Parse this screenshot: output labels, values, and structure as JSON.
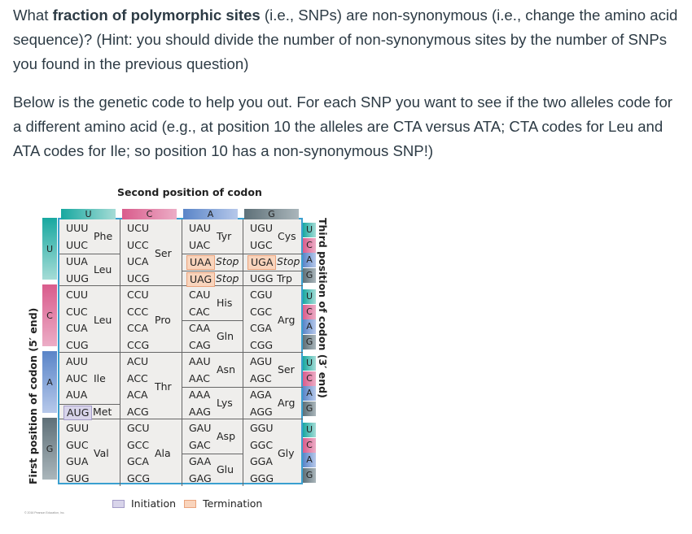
{
  "question": {
    "p1_pre": "What ",
    "p1_bold": "fraction of polymorphic sites",
    "p1_post": " (i.e., SNPs) are non-synonymous (i.e., change the amino acid sequence)? (Hint: you should divide the number of non-synonymous sites by the number of SNPs you found in the previous question)",
    "p2": "Below is the genetic code to help you out. For each SNP you want to see if the two alleles code for a different amino acid (e.g., at position 10 the alleles are CTA versus ATA; CTA codes for Leu and ATA codes for Ile; so position 10 has a non-synonymous SNP!)"
  },
  "genetic_code": {
    "second_position_title": "Second position of codon",
    "first_position_label": "First position of codon (5′ end)",
    "third_position_label": "Third position of codon (3′ end)",
    "bases": [
      "U",
      "C",
      "A",
      "G"
    ],
    "colors": {
      "U": "#18a8a0",
      "C": "#d95c8c",
      "A": "#5a85c8",
      "G": "#5e7078",
      "initiation": "#d8d4ea",
      "termination": "#f9d4bc",
      "border": "#3aa0d0"
    },
    "blocks": {
      "UU": {
        "codons": [
          "UUU",
          "UUC",
          "UUA",
          "UUG"
        ],
        "groups": [
          {
            "aa": "Phe",
            "rows": [
              0,
              1
            ]
          },
          {
            "aa": "Leu",
            "rows": [
              2,
              3
            ]
          }
        ]
      },
      "UC": {
        "codons": [
          "UCU",
          "UCC",
          "UCA",
          "UCG"
        ],
        "groups": [
          {
            "aa": "Ser",
            "rows": [
              0,
              3
            ]
          }
        ]
      },
      "UA": {
        "codons": [
          "UAU",
          "UAC",
          "UAA",
          "UAG"
        ],
        "groups": [
          {
            "aa": "Tyr",
            "rows": [
              0,
              1
            ]
          },
          {
            "aa": "Stop",
            "rows": [
              2,
              2
            ]
          },
          {
            "aa": "Stop",
            "rows": [
              3,
              3
            ]
          }
        ]
      },
      "UG": {
        "codons": [
          "UGU",
          "UGC",
          "UGA",
          "UGG"
        ],
        "groups": [
          {
            "aa": "Cys",
            "rows": [
              0,
              1
            ]
          },
          {
            "aa": "Stop",
            "rows": [
              2,
              2
            ]
          },
          {
            "aa": "Trp",
            "rows": [
              3,
              3
            ]
          }
        ]
      },
      "CU": {
        "codons": [
          "CUU",
          "CUC",
          "CUA",
          "CUG"
        ],
        "groups": [
          {
            "aa": "Leu",
            "rows": [
              0,
              3
            ]
          }
        ]
      },
      "CC": {
        "codons": [
          "CCU",
          "CCC",
          "CCA",
          "CCG"
        ],
        "groups": [
          {
            "aa": "Pro",
            "rows": [
              0,
              3
            ]
          }
        ]
      },
      "CA": {
        "codons": [
          "CAU",
          "CAC",
          "CAA",
          "CAG"
        ],
        "groups": [
          {
            "aa": "His",
            "rows": [
              0,
              1
            ]
          },
          {
            "aa": "Gln",
            "rows": [
              2,
              3
            ]
          }
        ]
      },
      "CG": {
        "codons": [
          "CGU",
          "CGC",
          "CGA",
          "CGG"
        ],
        "groups": [
          {
            "aa": "Arg",
            "rows": [
              0,
              3
            ]
          }
        ]
      },
      "AU": {
        "codons": [
          "AUU",
          "AUC",
          "AUA",
          "AUG"
        ],
        "groups": [
          {
            "aa": "Ile",
            "rows": [
              0,
              2
            ]
          },
          {
            "aa": "Met",
            "rows": [
              3,
              3
            ]
          }
        ]
      },
      "AC": {
        "codons": [
          "ACU",
          "ACC",
          "ACA",
          "ACG"
        ],
        "groups": [
          {
            "aa": "Thr",
            "rows": [
              0,
              3
            ]
          }
        ]
      },
      "AA": {
        "codons": [
          "AAU",
          "AAC",
          "AAA",
          "AAG"
        ],
        "groups": [
          {
            "aa": "Asn",
            "rows": [
              0,
              1
            ]
          },
          {
            "aa": "Lys",
            "rows": [
              2,
              3
            ]
          }
        ]
      },
      "AG": {
        "codons": [
          "AGU",
          "AGC",
          "AGA",
          "AGG"
        ],
        "groups": [
          {
            "aa": "Ser",
            "rows": [
              0,
              1
            ]
          },
          {
            "aa": "Arg",
            "rows": [
              2,
              3
            ]
          }
        ]
      },
      "GU": {
        "codons": [
          "GUU",
          "GUC",
          "GUA",
          "GUG"
        ],
        "groups": [
          {
            "aa": "Val",
            "rows": [
              0,
              3
            ]
          }
        ]
      },
      "GC": {
        "codons": [
          "GCU",
          "GCC",
          "GCA",
          "GCG"
        ],
        "groups": [
          {
            "aa": "Ala",
            "rows": [
              0,
              3
            ]
          }
        ]
      },
      "GA": {
        "codons": [
          "GAU",
          "GAC",
          "GAA",
          "GAG"
        ],
        "groups": [
          {
            "aa": "Asp",
            "rows": [
              0,
              1
            ]
          },
          {
            "aa": "Glu",
            "rows": [
              2,
              3
            ]
          }
        ]
      },
      "GG": {
        "codons": [
          "GGU",
          "GGC",
          "GGA",
          "GGG"
        ],
        "groups": [
          {
            "aa": "Gly",
            "rows": [
              0,
              3
            ]
          }
        ]
      }
    },
    "initiation_codons": [
      "AUG"
    ],
    "termination_codons": [
      "UAA",
      "UAG",
      "UGA"
    ],
    "legend": {
      "initiation": "Initiation",
      "termination": "Termination"
    },
    "copyright": "© 2016 Pearson Education, Inc."
  }
}
